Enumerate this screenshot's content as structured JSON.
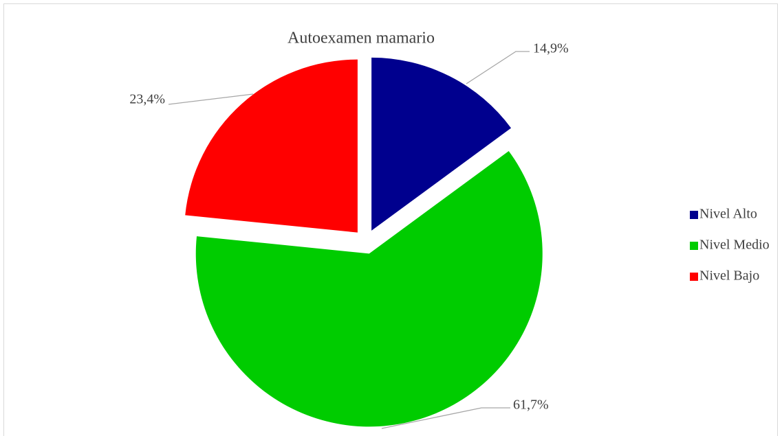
{
  "chart_data": {
    "type": "pie",
    "title": "Autoexamen mamario",
    "categories": [
      "Nivel Alto",
      "Nivel Medio",
      "Nivel Bajo"
    ],
    "values": [
      14.9,
      61.7,
      23.4
    ],
    "value_labels": [
      "14,9%",
      "61,7%",
      "23,4%"
    ],
    "colors": [
      "#00008e",
      "#00cc00",
      "#ff0000"
    ],
    "legend": "right"
  }
}
